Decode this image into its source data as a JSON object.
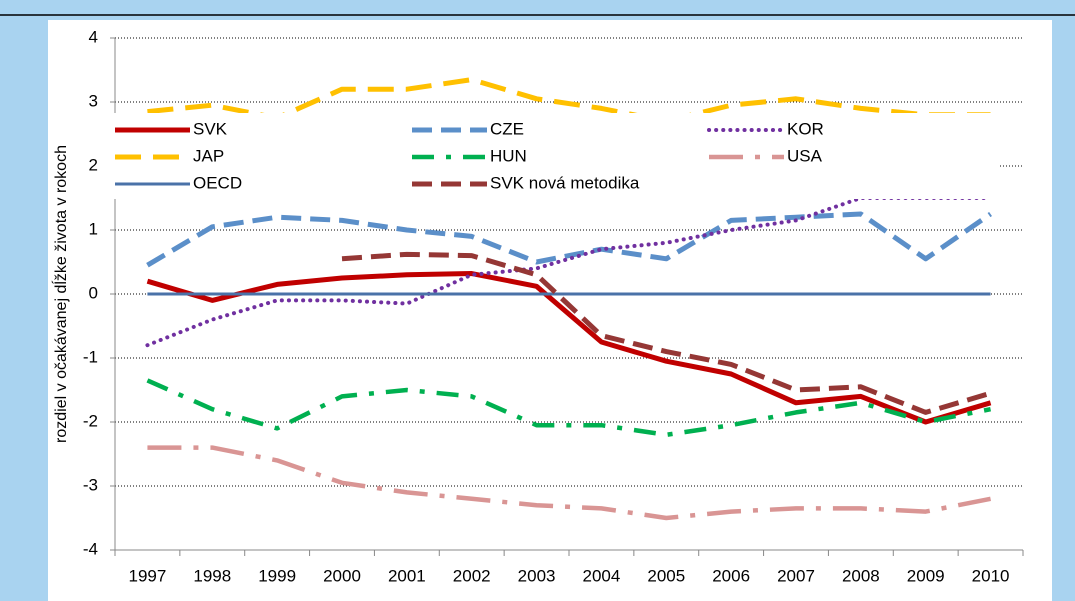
{
  "chart_data": {
    "type": "line",
    "y_label": "rozdiel v očakávanej dĺžke života v rokoch",
    "categories": [
      "1997",
      "1998",
      "1999",
      "2000",
      "2001",
      "2002",
      "2003",
      "2004",
      "2005",
      "2006",
      "2007",
      "2008",
      "2009",
      "2010"
    ],
    "ylim": [
      -4,
      4
    ],
    "yticks": [
      -4,
      -3,
      -2,
      -1,
      0,
      1,
      2,
      3,
      4
    ],
    "grid": true,
    "series": [
      {
        "name": "SVK",
        "color": "#c00000",
        "style": "solid",
        "values": [
          0.2,
          -0.1,
          0.15,
          0.25,
          0.3,
          0.32,
          0.12,
          -0.75,
          -1.05,
          -1.25,
          -1.7,
          -1.6,
          -2.0,
          -1.7
        ]
      },
      {
        "name": "CZE",
        "color": "#5b8fc9",
        "style": "dashed",
        "values": [
          0.45,
          1.05,
          1.2,
          1.15,
          1.0,
          0.9,
          0.5,
          0.7,
          0.55,
          1.15,
          1.2,
          1.25,
          0.55,
          1.25
        ]
      },
      {
        "name": "KOR",
        "color": "#7030a0",
        "style": "dotted",
        "values": [
          -0.8,
          -0.4,
          -0.1,
          -0.1,
          -0.15,
          0.3,
          0.4,
          0.7,
          0.8,
          1.0,
          1.15,
          1.5,
          1.5,
          1.5
        ]
      },
      {
        "name": "JAP",
        "color": "#ffc000",
        "style": "longdash",
        "values": [
          2.85,
          2.95,
          2.75,
          3.2,
          3.2,
          3.35,
          3.05,
          2.9,
          2.7,
          2.95,
          3.05,
          2.9,
          2.8,
          2.8
        ]
      },
      {
        "name": "HUN",
        "color": "#00b050",
        "style": "dashdot",
        "values": [
          -1.35,
          -1.8,
          -2.1,
          -1.6,
          -1.5,
          -1.6,
          -2.05,
          -2.05,
          -2.2,
          -2.05,
          -1.85,
          -1.7,
          -2.0,
          -1.8
        ]
      },
      {
        "name": "USA",
        "color": "#d99594",
        "style": "longdashdot",
        "values": [
          -2.4,
          -2.4,
          -2.6,
          -2.95,
          -3.1,
          -3.2,
          -3.3,
          -3.35,
          -3.5,
          -3.4,
          -3.35,
          -3.35,
          -3.4,
          -3.2
        ]
      },
      {
        "name": "OECD",
        "color": "#4a72a8",
        "style": "thin",
        "values": [
          0,
          0,
          0,
          0,
          0,
          0,
          0,
          0,
          0,
          0,
          0,
          0,
          0,
          0
        ]
      },
      {
        "name": "SVK nová metodika",
        "color": "#953735",
        "style": "dashed",
        "values": [
          null,
          null,
          null,
          0.55,
          0.62,
          0.6,
          0.3,
          -0.65,
          -0.9,
          -1.1,
          -1.5,
          -1.45,
          -1.85,
          -1.55
        ]
      }
    ]
  }
}
